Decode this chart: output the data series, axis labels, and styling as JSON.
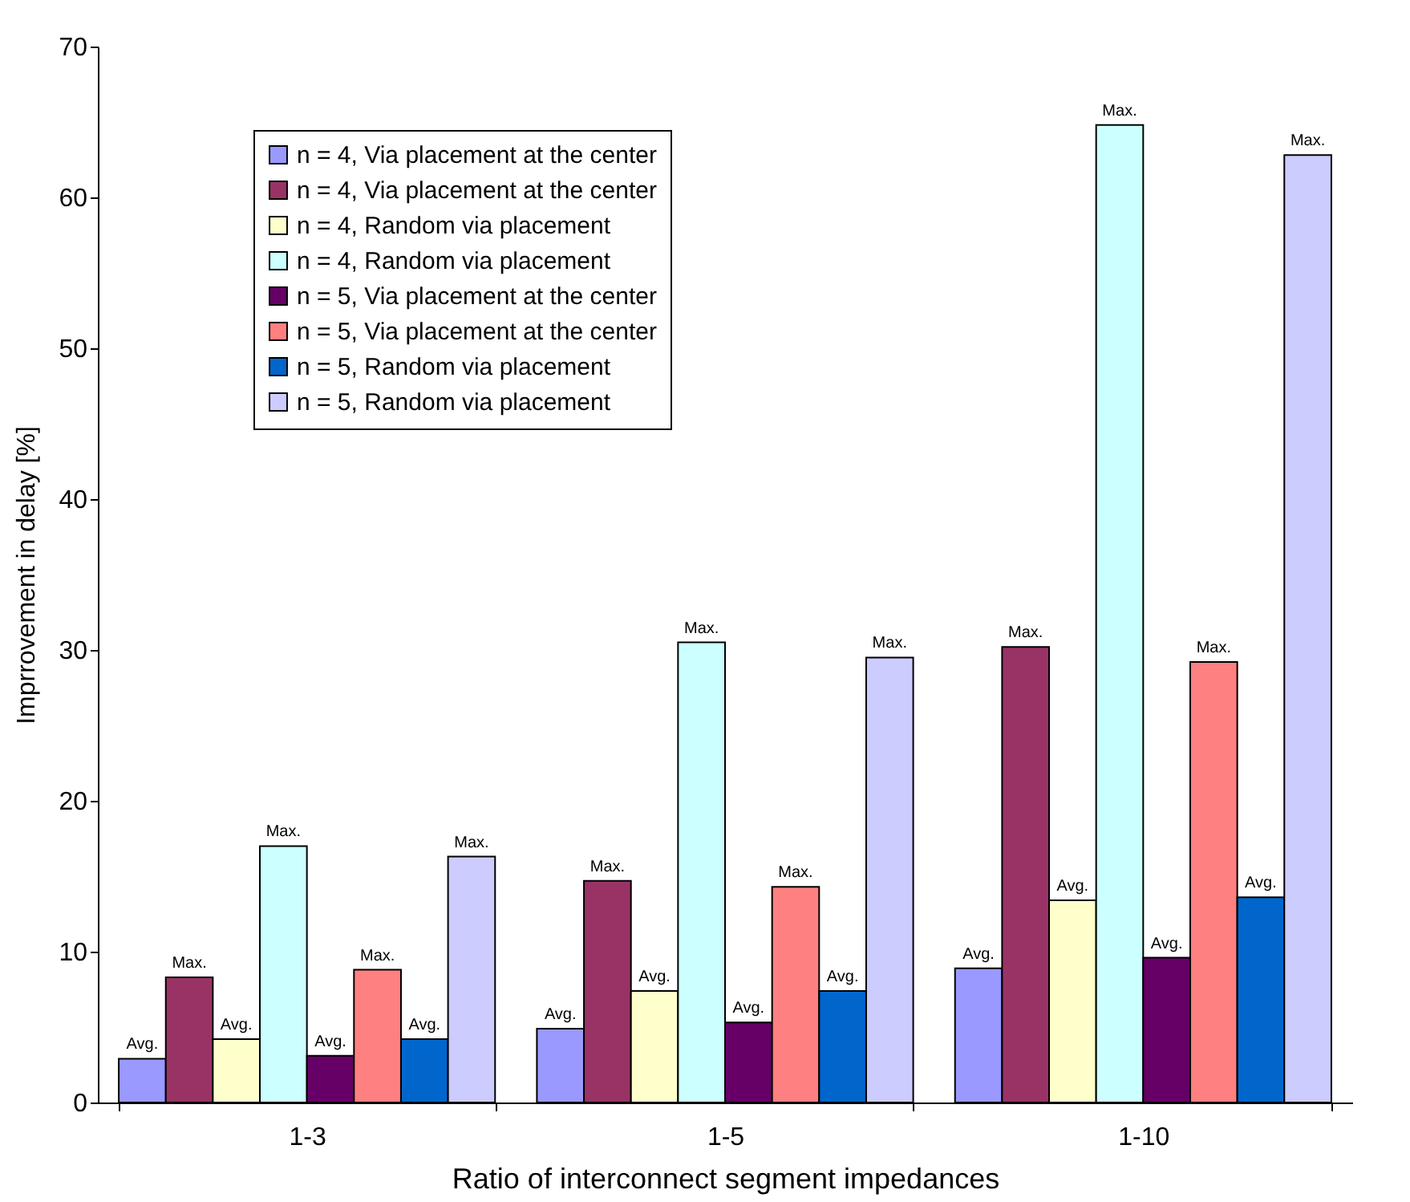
{
  "chart_data": {
    "type": "bar",
    "xlabel": "Ratio of interconnect segment impedances",
    "ylabel": "Imprrovement in delay [%]",
    "categories": [
      "1-3",
      "1-5",
      "1-10"
    ],
    "ylim": [
      0,
      70
    ],
    "yticks": [
      0,
      10,
      20,
      30,
      40,
      50,
      60,
      70
    ],
    "grid": false,
    "legend": "top left",
    "series": [
      {
        "name": "n = 4, Via placement at the center",
        "color": "#9999ff",
        "values": [
          2.9,
          4.9,
          8.9
        ],
        "value_labels": [
          "Avg.",
          "Avg.",
          "Avg."
        ]
      },
      {
        "name": "n = 4, Via placement at the center",
        "color": "#993366",
        "values": [
          8.3,
          14.7,
          30.2
        ],
        "value_labels": [
          "Max.",
          "Max.",
          "Max."
        ]
      },
      {
        "name": "n = 4, Random via placement",
        "color": "#ffffcc",
        "values": [
          4.2,
          7.4,
          13.4
        ],
        "value_labels": [
          "Avg.",
          "Avg.",
          "Avg."
        ]
      },
      {
        "name": "n = 4, Random via placement",
        "color": "#ccffff",
        "values": [
          17.0,
          30.5,
          64.8
        ],
        "value_labels": [
          "Max.",
          "Max.",
          "Max."
        ]
      },
      {
        "name": "n = 5, Via placement at the center",
        "color": "#660066",
        "values": [
          3.1,
          5.3,
          9.6
        ],
        "value_labels": [
          "Avg.",
          "Avg.",
          "Avg."
        ]
      },
      {
        "name": "n = 5, Via placement at the center",
        "color": "#ff8080",
        "values": [
          8.8,
          14.3,
          29.2
        ],
        "value_labels": [
          "Max.",
          "Max.",
          "Max."
        ]
      },
      {
        "name": "n = 5, Random via placement",
        "color": "#0066cc",
        "values": [
          4.2,
          7.4,
          13.6
        ],
        "value_labels": [
          "Avg.",
          "Avg.",
          "Avg."
        ]
      },
      {
        "name": "n = 5, Random via placement",
        "color": "#ccccff",
        "values": [
          16.3,
          29.5,
          62.8
        ],
        "value_labels": [
          "Max.",
          "Max.",
          "Max."
        ]
      }
    ]
  }
}
